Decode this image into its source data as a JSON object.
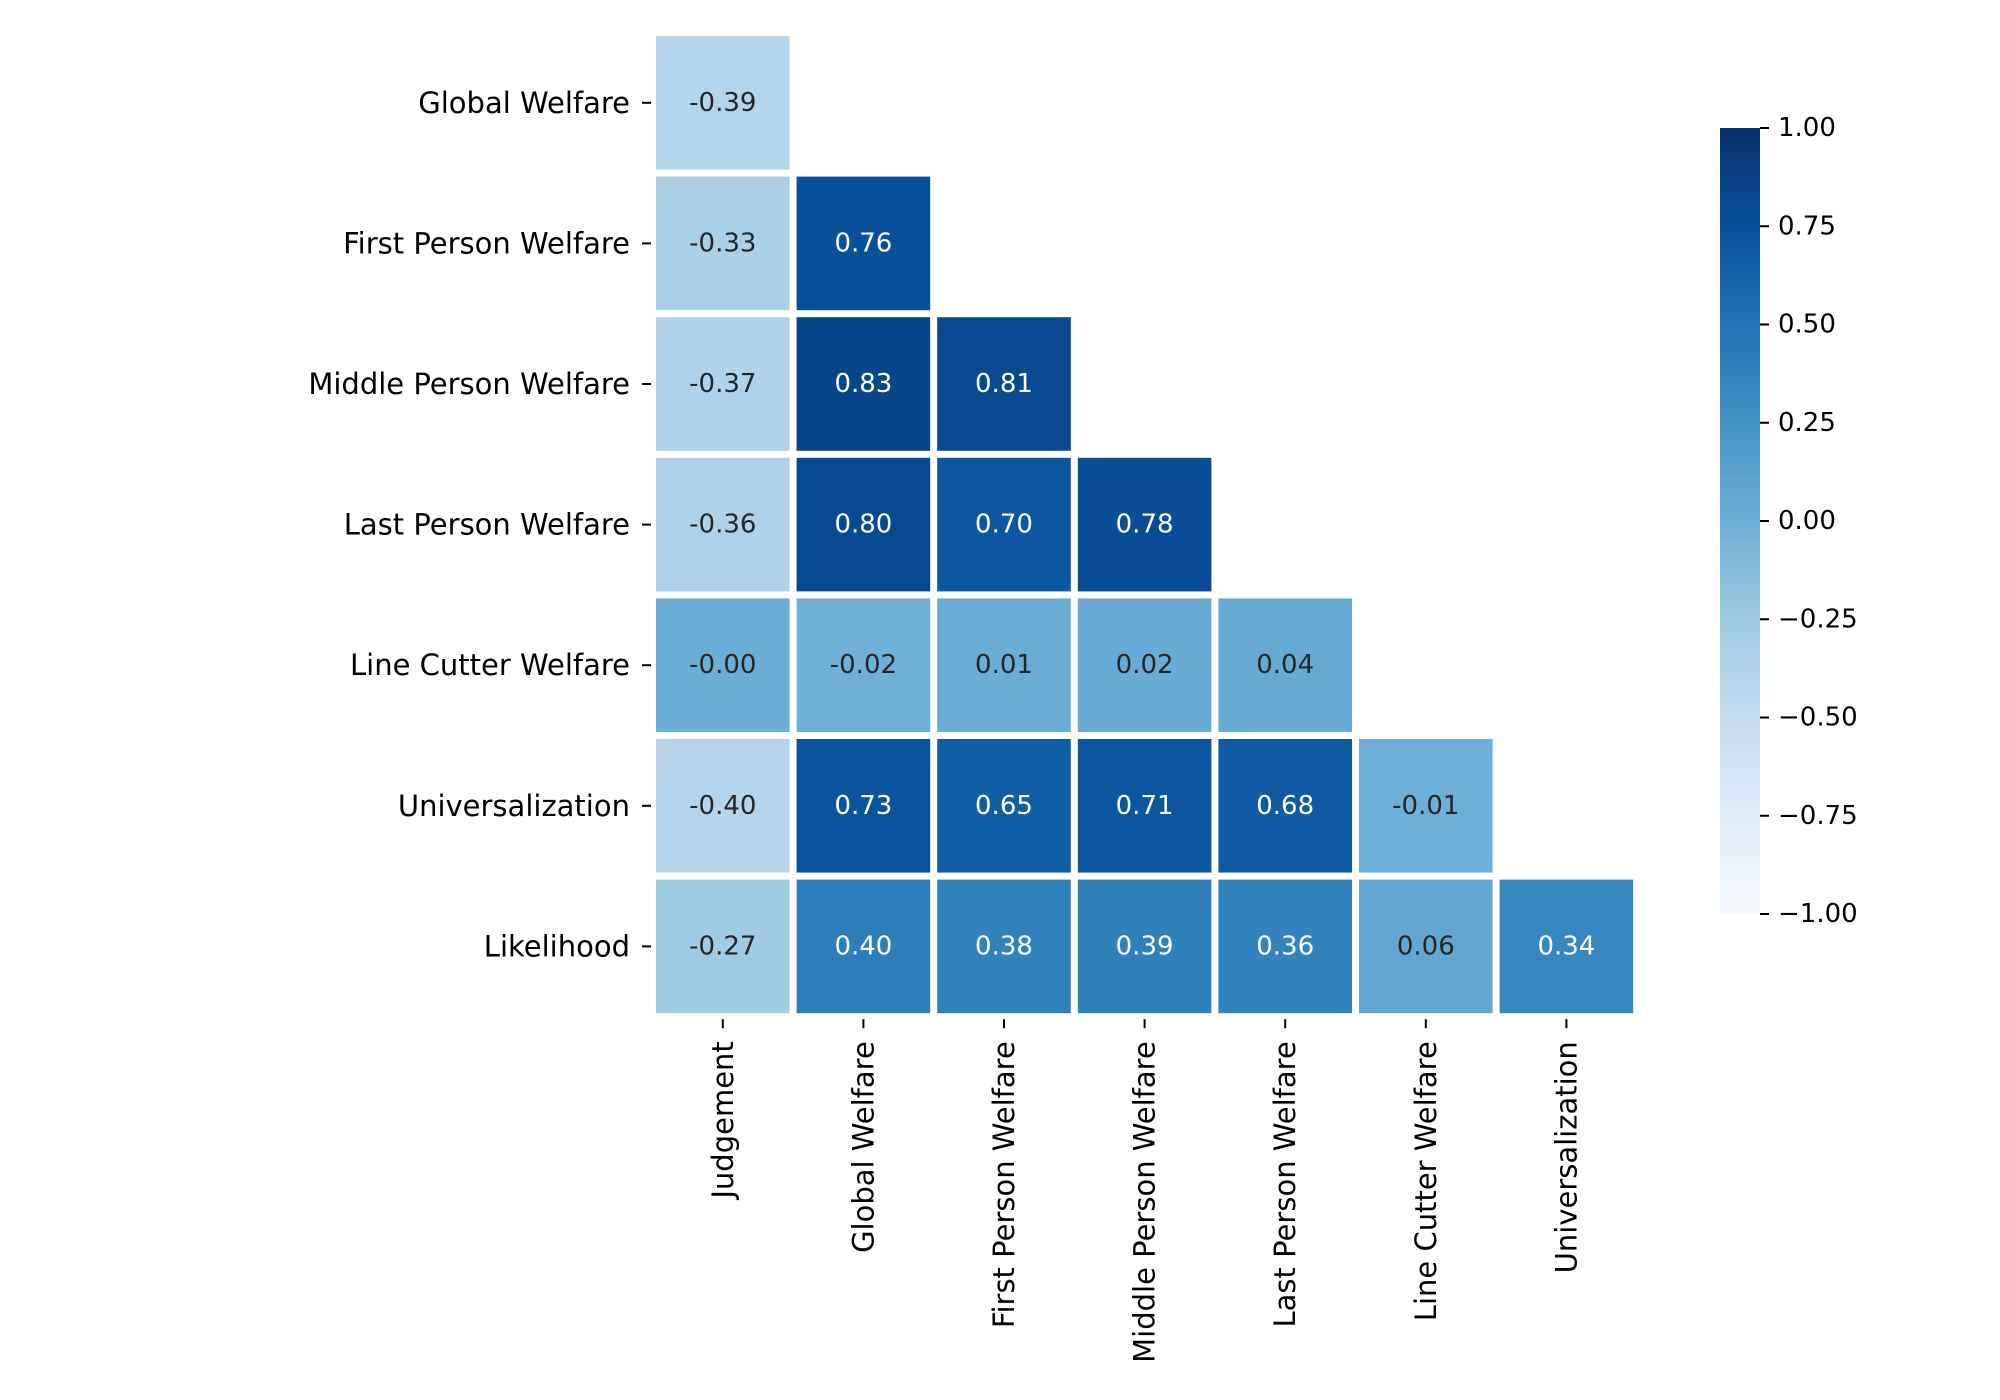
{
  "chart_data": {
    "type": "heatmap",
    "title": "",
    "xlabel": "",
    "ylabel": "",
    "x_categories": [
      "Judgement",
      "Global Welfare",
      "First Person Welfare",
      "Middle Person Welfare",
      "Last Person Welfare",
      "Line Cutter Welfare",
      "Universalization"
    ],
    "y_categories": [
      "Global Welfare",
      "First Person Welfare",
      "Middle Person Welfare",
      "Last Person Welfare",
      "Line Cutter Welfare",
      "Universalization",
      "Likelihood"
    ],
    "values": [
      [
        -0.39,
        null,
        null,
        null,
        null,
        null,
        null
      ],
      [
        -0.33,
        0.76,
        null,
        null,
        null,
        null,
        null
      ],
      [
        -0.37,
        0.83,
        0.81,
        null,
        null,
        null,
        null
      ],
      [
        -0.36,
        0.8,
        0.7,
        0.78,
        null,
        null,
        null
      ],
      [
        -0.0,
        -0.02,
        0.01,
        0.02,
        0.04,
        null,
        null
      ],
      [
        -0.4,
        0.73,
        0.65,
        0.71,
        0.68,
        -0.01,
        null
      ],
      [
        -0.27,
        0.4,
        0.38,
        0.39,
        0.36,
        0.06,
        0.34
      ]
    ],
    "value_labels": [
      [
        "-0.39"
      ],
      [
        "-0.33",
        "0.76"
      ],
      [
        "-0.37",
        "0.83",
        "0.81"
      ],
      [
        "-0.36",
        "0.80",
        "0.70",
        "0.78"
      ],
      [
        "-0.00",
        "-0.02",
        "0.01",
        "0.02",
        "0.04"
      ],
      [
        "-0.40",
        "0.73",
        "0.65",
        "0.71",
        "0.68",
        "-0.01"
      ],
      [
        "-0.27",
        "0.40",
        "0.38",
        "0.39",
        "0.36",
        "0.06",
        "0.34"
      ]
    ],
    "colorbar": {
      "range": [
        -1.0,
        1.0
      ],
      "ticks": [
        1.0,
        0.75,
        0.5,
        0.25,
        0.0,
        -0.25,
        -0.5,
        -0.75,
        -1.0
      ],
      "tick_labels": [
        "1.00",
        "0.75",
        "0.50",
        "0.25",
        "0.00",
        "−0.25",
        "−0.50",
        "−0.75",
        "−1.00"
      ]
    },
    "colormap": "Blues",
    "colormap_stops": [
      "#f7fbff",
      "#deebf7",
      "#c6dbef",
      "#9ecae1",
      "#6baed6",
      "#4292c6",
      "#2171b5",
      "#08519c",
      "#08306b"
    ],
    "legend_position": "right"
  }
}
